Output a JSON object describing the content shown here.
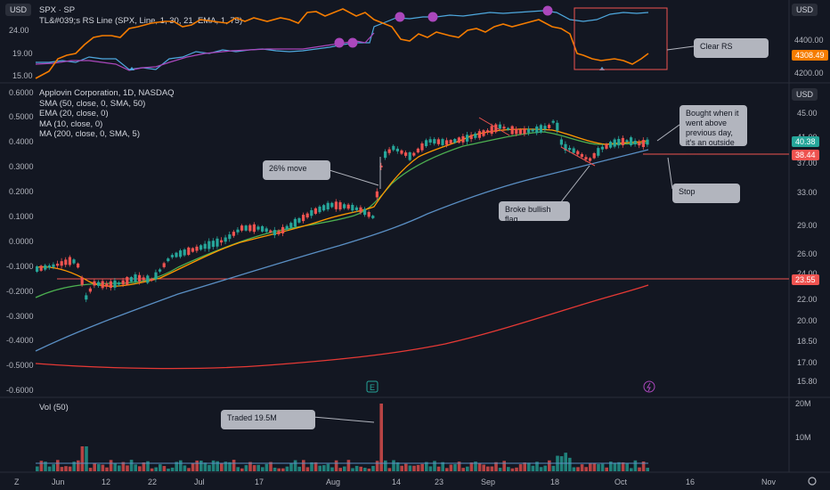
{
  "top_panel": {
    "currency_left": "USD",
    "currency_right": "USD",
    "title_line1": "SPX · SP",
    "title_line2": "TL&#039;s RS Line (SPX, Line, 1, 30, 21, EMA, 1, 75)",
    "left_ticks": [
      "24.00",
      "19.00",
      "15.00"
    ],
    "right_ticks": [
      "4400.00",
      "4200.00"
    ],
    "price_tag": "4308.49",
    "callout": "Clear RS"
  },
  "main_panel": {
    "currency_right": "USD",
    "title": "Applovin Corporation, 1D, NASDAQ",
    "indicators": [
      "SMA (50, close, 0, SMA, 50)",
      "EMA (20, close, 0)",
      "MA (10, close, 0)",
      "MA (200, close, 0, SMA, 5)"
    ],
    "left_ticks": [
      "0.6000",
      "0.5000",
      "0.4000",
      "0.3000",
      "0.2000",
      "0.1000",
      "0.0000",
      "-0.1000",
      "-0.2000",
      "-0.3000",
      "-0.4000",
      "-0.5000",
      "-0.6000"
    ],
    "right_ticks": [
      "45.00",
      "41.00",
      "37.00",
      "33.00",
      "29.00",
      "26.00",
      "24.00",
      "22.00",
      "20.00",
      "18.50",
      "17.00",
      "15.80"
    ],
    "price_tag_current": "40.38",
    "price_tag_stop": "38.44",
    "price_tag_support": "23.55",
    "callouts": {
      "move": "26% move",
      "bought": "Bought when it went above previous day, it's an outside day",
      "stop": "Stop",
      "flag": "Broke bullish flag"
    },
    "event_icons": [
      "earnings-icon",
      "dividend-icon"
    ]
  },
  "volume_panel": {
    "title": "Vol (50)",
    "right_ticks": [
      "20M",
      "10M"
    ],
    "callout": "Traded 19.5M"
  },
  "time_axis": {
    "labels": [
      "Jun",
      "12",
      "22",
      "Jul",
      "17",
      "Aug",
      "14",
      "23",
      "Sep",
      "18",
      "Oct",
      "16",
      "Nov"
    ],
    "corner_left": "Z",
    "corner_right": "gear-icon"
  },
  "colors": {
    "bg": "#131722",
    "up": "#26a69a",
    "down": "#ef5350",
    "rs_line": "#4ea8de",
    "spx_line": "#f57c00",
    "sma50": "#5a8fc4",
    "ema20": "#4caf50",
    "ma10": "#ff9800",
    "ma200": "#e53935",
    "callout_bg": "#b2b5be",
    "marker": "#ab47bc"
  }
}
